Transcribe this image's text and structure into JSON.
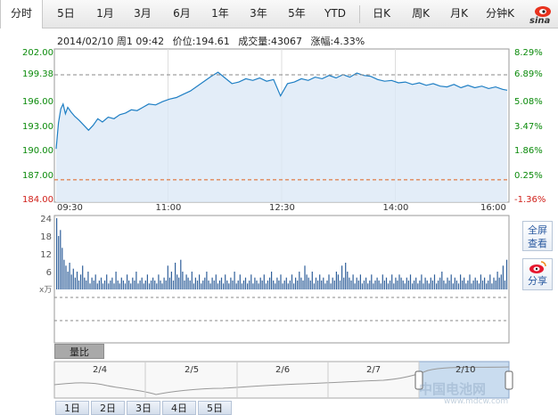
{
  "tabs": [
    {
      "label": "分时",
      "active": true
    },
    {
      "label": "5日"
    },
    {
      "label": "1月"
    },
    {
      "label": "3月"
    },
    {
      "label": "6月"
    },
    {
      "label": "1年"
    },
    {
      "label": "3年"
    },
    {
      "label": "5年"
    },
    {
      "label": "YTD"
    },
    {
      "label": "日K"
    },
    {
      "label": "周K"
    },
    {
      "label": "月K"
    },
    {
      "label": "分钟K"
    }
  ],
  "logo": {
    "text": "sina",
    "icon": "sina-eye-icon"
  },
  "info": {
    "datetime": "2014/02/10 周1 09:42",
    "price": "价位:194.61",
    "volume": "成交量:43067",
    "change": "涨幅:4.33%"
  },
  "chart_data": [
    {
      "type": "area",
      "ylim": [
        184.0,
        202.0
      ],
      "y_ticks_left": [
        "202.00",
        "199.38",
        "196.00",
        "193.00",
        "190.00",
        "187.00",
        "184.00"
      ],
      "y_ticks_right": [
        "8.29%",
        "6.89%",
        "5.08%",
        "3.47%",
        "1.86%",
        "0.25%",
        "-1.36%"
      ],
      "x_ticks": [
        "09:30",
        "11:00",
        "12:30",
        "14:00",
        "16:00"
      ],
      "reference_lines": [
        {
          "value": 199.38,
          "style": "dashed",
          "color": "#888888"
        },
        {
          "value": 186.52,
          "style": "dashed",
          "color": "#e0601a"
        }
      ],
      "x_minutes": [
        0,
        2,
        4,
        6,
        8,
        10,
        13,
        16,
        20,
        24,
        28,
        32,
        36,
        40,
        45,
        50,
        55,
        60,
        65,
        70,
        75,
        80,
        86,
        92,
        98,
        104,
        110,
        116,
        122,
        128,
        134,
        140,
        146,
        152,
        158,
        164,
        170,
        176,
        182,
        188,
        194,
        200,
        206,
        212,
        218,
        224,
        230,
        236,
        242,
        248,
        254,
        260,
        266,
        272,
        278,
        284,
        290,
        296,
        302,
        308,
        314,
        320,
        326,
        332,
        338,
        344,
        350,
        356,
        362,
        368,
        374,
        380,
        386,
        390
      ],
      "y": [
        190.3,
        193.5,
        195.2,
        195.8,
        194.6,
        195.4,
        194.8,
        194.3,
        193.8,
        193.2,
        192.6,
        193.2,
        194.0,
        193.6,
        194.2,
        194.0,
        194.5,
        194.7,
        195.1,
        195.0,
        195.4,
        195.8,
        195.7,
        196.1,
        196.4,
        196.6,
        197.0,
        197.4,
        198.0,
        198.6,
        199.2,
        199.7,
        199.0,
        198.3,
        198.5,
        198.9,
        198.7,
        199.0,
        198.6,
        198.8,
        196.8,
        198.3,
        198.5,
        198.9,
        198.7,
        199.1,
        198.9,
        199.3,
        199.0,
        199.4,
        199.1,
        199.6,
        199.3,
        199.2,
        198.8,
        198.6,
        198.7,
        198.4,
        198.5,
        198.2,
        198.4,
        198.1,
        198.3,
        198.0,
        197.9,
        198.2,
        197.8,
        198.1,
        197.8,
        198.0,
        197.7,
        197.9,
        197.6,
        197.5
      ],
      "line_color": "#1f7fc4",
      "fill_color": "#dce9f6"
    },
    {
      "type": "bar",
      "title": "volume",
      "unit": "x万",
      "y_ticks": [
        "24",
        "18",
        "12",
        "6"
      ],
      "ylim": [
        0,
        24
      ],
      "values": [
        24,
        18,
        20,
        14,
        10,
        8,
        6,
        9,
        5,
        7,
        4,
        6,
        3,
        5,
        8,
        4,
        3,
        6,
        2,
        4,
        3,
        5,
        2,
        3,
        4,
        2,
        3,
        5,
        2,
        3,
        4,
        2,
        6,
        3,
        2,
        4,
        3,
        2,
        5,
        3,
        2,
        4,
        3,
        6,
        2,
        3,
        4,
        2,
        3,
        5,
        2,
        3,
        4,
        3,
        2,
        5,
        3,
        2,
        4,
        3,
        8,
        4,
        6,
        3,
        9,
        5,
        4,
        10,
        6,
        3,
        5,
        4,
        3,
        6,
        2,
        4,
        3,
        5,
        2,
        3,
        4,
        6,
        3,
        2,
        4,
        3,
        5,
        2,
        3,
        4,
        2,
        5,
        3,
        2,
        4,
        3,
        6,
        2,
        3,
        5,
        2,
        3,
        4,
        2,
        3,
        5,
        2,
        4,
        3,
        2,
        4,
        3,
        5,
        2,
        3,
        4,
        6,
        3,
        2,
        4,
        3,
        5,
        2,
        3,
        4,
        2,
        3,
        5,
        2,
        4,
        3,
        6,
        4,
        3,
        8,
        5,
        4,
        3,
        6,
        2,
        4,
        3,
        5,
        3,
        4,
        2,
        3,
        5,
        2,
        4,
        3,
        6,
        5,
        3,
        8,
        4,
        9,
        6,
        4,
        3,
        5,
        2,
        4,
        3,
        5,
        2,
        3,
        4,
        2,
        3,
        5,
        2,
        3,
        4,
        3,
        2,
        5,
        3,
        4,
        2,
        3,
        5,
        2,
        4,
        3,
        5,
        4,
        3,
        2,
        4,
        3,
        5,
        2,
        3,
        4,
        2,
        3,
        5,
        2,
        4,
        3,
        2,
        4,
        3,
        5,
        2,
        3,
        4,
        6,
        3,
        2,
        4,
        3,
        5,
        2,
        4,
        3,
        2,
        5,
        3,
        4,
        2,
        3,
        5,
        2,
        3,
        4,
        3,
        2,
        5,
        3,
        4,
        2,
        3,
        5,
        2,
        4,
        3,
        6,
        4,
        5,
        8,
        3,
        10
      ],
      "bar_color": "#2f5f9a"
    }
  ],
  "side_buttons": {
    "fullscreen": "全屏\n查看",
    "share": "分享"
  },
  "indicator_tab": "量比",
  "navigator": {
    "date_labels": [
      "2/4",
      "2/5",
      "2/6",
      "2/7",
      "2/10"
    ],
    "selected": "2/10"
  },
  "range_buttons": [
    "1日",
    "2日",
    "3日",
    "4日",
    "5日"
  ],
  "watermark": {
    "text": "中国电池网",
    "url": "www.mdcw.com"
  }
}
